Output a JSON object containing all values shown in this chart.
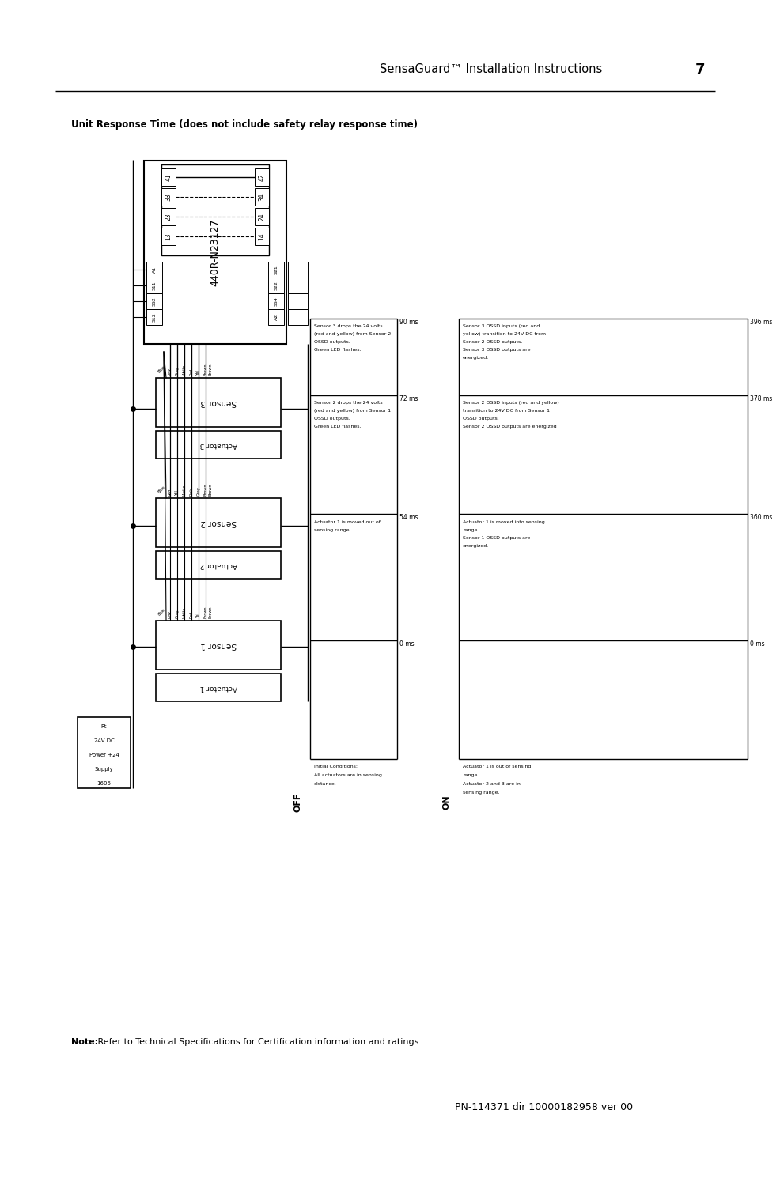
{
  "title": "SensaGuard™ Installation Instructions",
  "page_num": "7",
  "subtitle": "Unit Response Time (does not include safety relay response time)",
  "footer_bold": "Note:",
  "footer_rest": " Refer to Technical Specifications for Certification information and ratings.",
  "footer_pn": "PN-114371 dir 10000182958 ver 00",
  "relay_label": "440R-N23127",
  "relay_pins_top_left": [
    "41",
    "33",
    "23",
    "13"
  ],
  "relay_pins_top_right": [
    "42",
    "34",
    "24",
    "14"
  ],
  "relay_pins_bot_left": [
    "A1",
    "S11",
    "SS2",
    "S12"
  ],
  "relay_pins_bot_right": [
    "S21",
    "S22",
    "SS4",
    "A2"
  ],
  "sensor3_label": "Sensor 3",
  "actuator3_label": "Actuator 3",
  "sensor2_label": "Sensor 2",
  "actuator2_label": "Actuator 2",
  "sensor1_label": "Sensor 1",
  "actuator1_label": "Actuator 1",
  "ps_label": [
    "Rt",
    "24V DC",
    "Power +24",
    "Supply",
    "1606"
  ],
  "wire_colors_3": [
    "Pink",
    "Gray",
    "White",
    "Red",
    "Yel",
    "Brown"
  ],
  "wire_colors_2": [
    "Red",
    "Yel",
    "White",
    "Pink",
    "Gray",
    "Brown"
  ],
  "wire_colors_1": [
    "Pink",
    "Gray",
    "White",
    "Red",
    "Yel",
    "Brown"
  ],
  "off_label": "OFF",
  "on_label": "ON",
  "timing_left_labels": [
    "90 ms",
    "72 ms",
    "54 ms",
    "0 ms"
  ],
  "timing_right_labels": [
    "396 ms",
    "378 ms",
    "360 ms",
    "0 ms"
  ],
  "off_band4_text": [
    "Sensor 3 drops the 24 volts",
    "(red and yellow) from Sensor 2",
    "OSSD outputs.",
    "Green LED flashes."
  ],
  "off_band3_text": [
    "Sensor 2 drops the 24 volts",
    "(red and yellow) from Sensor 1",
    "OSSD outputs.",
    "Green LED flashes."
  ],
  "off_band2_text": [
    "Actuator 1 is moved out of",
    "sensing range."
  ],
  "off_band1_text": [
    "Initial Conditions:",
    "All actuators are in sensing",
    "distance."
  ],
  "on_band4_text": [
    "Sensor 3 OSSD inputs (red and",
    "yellow) transition to 24V DC from",
    "Sensor 2 OSSD outputs.",
    "Sensor 3 OSSD outputs are",
    "energized."
  ],
  "on_band3_text": [
    "Sensor 2 OSSD inputs (red and yellow)",
    "transition to 24V DC from Sensor 1",
    "OSSD outputs.",
    "Sensor 2 OSSD outputs are energized"
  ],
  "on_band2_text": [
    "Actuator 1 is moved into sensing",
    "range.",
    "Sensor 1 OSSD outputs are",
    "energized."
  ],
  "on_band1_text": [
    "Actuator 1 is out of sensing",
    "range.",
    "Actuator 2 and 3 are in",
    "sensing range."
  ],
  "bg": "#ffffff"
}
